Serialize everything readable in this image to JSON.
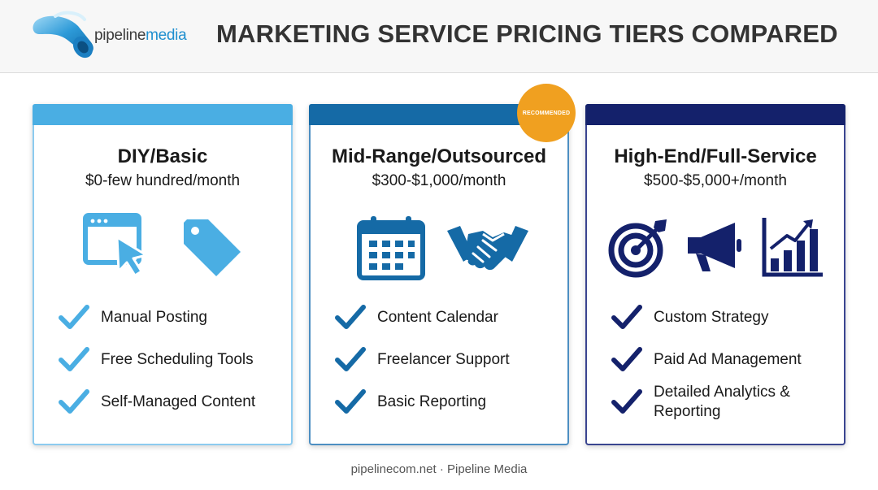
{
  "brand": {
    "name_part1": "pipeline",
    "name_part2": "media"
  },
  "title": "MARKETING SERVICE PRICING TIERS COMPARED",
  "badge": "RECOMMENDED",
  "tiers": [
    {
      "name": "DIY/Basic",
      "price": "$0-few hundred/month",
      "accent": "#4aaee3",
      "icons": [
        "browser-cursor-icon",
        "price-tag-icon"
      ],
      "features": [
        "Manual Posting",
        "Free Scheduling Tools",
        "Self-Managed Content"
      ]
    },
    {
      "name": "Mid-Range/Outsourced",
      "price": "$300-$1,000/month",
      "accent": "#156aa6",
      "icons": [
        "calendar-icon",
        "handshake-icon"
      ],
      "features": [
        "Content Calendar",
        "Freelancer Support",
        "Basic Reporting"
      ]
    },
    {
      "name": "High-End/Full-Service",
      "price": "$500-$5,000+/month",
      "accent": "#14216b",
      "icons": [
        "target-icon",
        "megaphone-icon",
        "growth-chart-icon"
      ],
      "features": [
        "Custom Strategy",
        "Paid Ad Management",
        "Detailed Analytics & Reporting"
      ]
    }
  ],
  "footer": "pipelinecom.net · Pipeline Media"
}
